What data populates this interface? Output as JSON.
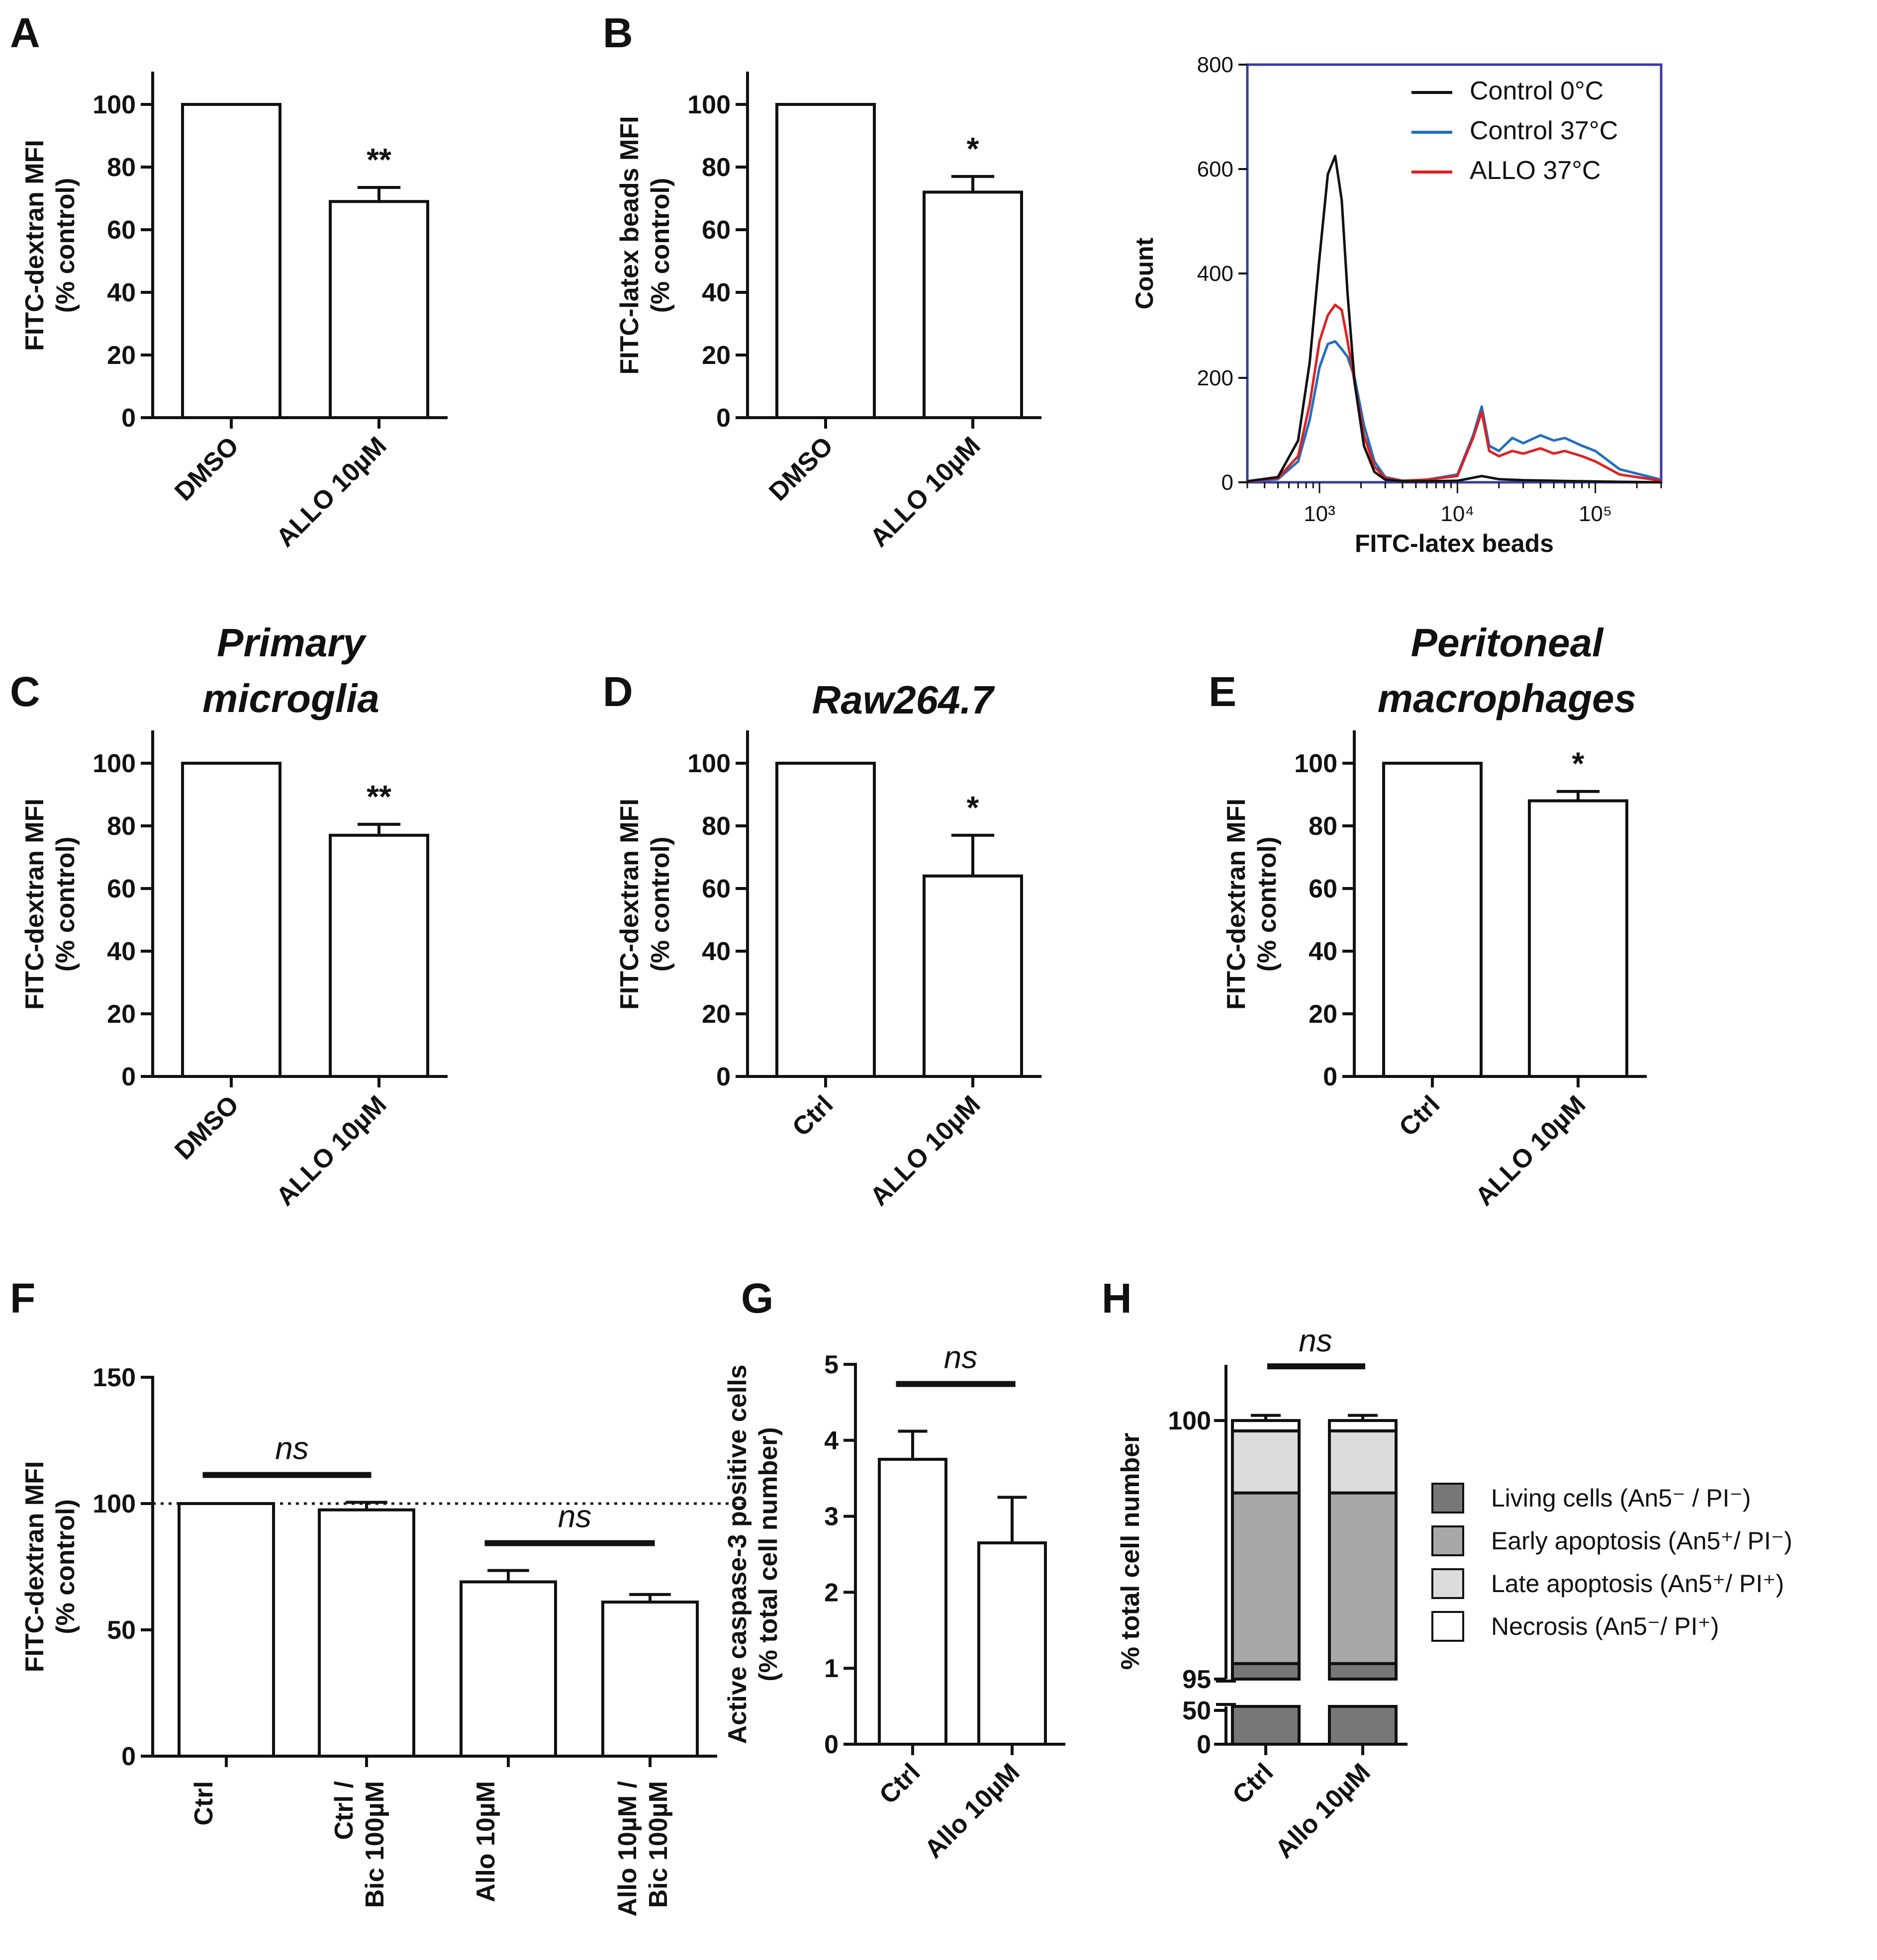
{
  "chart_data": [
    {
      "panel": "A",
      "type": "bar",
      "ylabel": [
        "FITC-dextran MFI",
        "(% control)"
      ],
      "categories": [
        "DMSO",
        "ALLO 10µM"
      ],
      "values": [
        100,
        69
      ],
      "errors": [
        0,
        4.5
      ],
      "significance": [
        "",
        "**"
      ],
      "ylim": [
        0,
        110
      ],
      "yticks": [
        0,
        20,
        40,
        60,
        80,
        100
      ]
    },
    {
      "panel": "B",
      "type": "bar",
      "ylabel": [
        "FITC-latex beads MFI",
        "(% control)"
      ],
      "categories": [
        "DMSO",
        "ALLO 10µM"
      ],
      "values": [
        100,
        72
      ],
      "errors": [
        0,
        5
      ],
      "significance": [
        "",
        "*"
      ],
      "ylim": [
        0,
        110
      ],
      "yticks": [
        0,
        20,
        40,
        60,
        80,
        100
      ]
    },
    {
      "panel": "B-histogram",
      "type": "line",
      "xlabel": "FITC-latex beads",
      "ylabel": "Count",
      "ylim": [
        0,
        800
      ],
      "yticks": [
        0,
        200,
        400,
        600,
        800
      ],
      "xscale": "log",
      "xlim": [
        300,
        300000
      ],
      "xtick_labels": [
        "10³",
        "10⁴",
        "10⁵"
      ],
      "legend": "top-right",
      "series": [
        {
          "name": "Control 0°C",
          "color": "#111111",
          "x": [
            300,
            500,
            700,
            850,
            1000,
            1150,
            1300,
            1450,
            1600,
            1800,
            2100,
            2500,
            3000,
            4000,
            6000,
            10000,
            15000,
            20000,
            30000,
            50000,
            80000,
            150000,
            300000
          ],
          "y": [
            2,
            10,
            80,
            230,
            430,
            590,
            625,
            540,
            360,
            190,
            70,
            20,
            5,
            2,
            2,
            3,
            12,
            6,
            4,
            3,
            2,
            1,
            0
          ]
        },
        {
          "name": "Control 37°C",
          "color": "#1f6fc0",
          "x": [
            300,
            500,
            700,
            850,
            1000,
            1150,
            1300,
            1450,
            1600,
            1800,
            2100,
            2500,
            3000,
            4000,
            6000,
            10000,
            13000,
            15000,
            17000,
            20000,
            25000,
            30000,
            40000,
            50000,
            60000,
            80000,
            100000,
            150000,
            300000
          ],
          "y": [
            2,
            6,
            40,
            120,
            220,
            265,
            270,
            255,
            240,
            200,
            110,
            40,
            10,
            3,
            5,
            15,
            90,
            145,
            70,
            60,
            85,
            75,
            90,
            80,
            85,
            70,
            60,
            25,
            5
          ]
        },
        {
          "name": "ALLO 37°C",
          "color": "#e02020",
          "x": [
            300,
            500,
            700,
            850,
            1000,
            1150,
            1300,
            1450,
            1600,
            1800,
            2100,
            2500,
            3000,
            4000,
            6000,
            10000,
            13000,
            15000,
            17000,
            20000,
            25000,
            30000,
            40000,
            50000,
            60000,
            80000,
            100000,
            150000,
            300000
          ],
          "y": [
            2,
            8,
            50,
            150,
            270,
            320,
            340,
            330,
            270,
            190,
            90,
            30,
            8,
            3,
            5,
            12,
            85,
            135,
            60,
            50,
            60,
            55,
            65,
            55,
            60,
            50,
            40,
            15,
            3
          ]
        }
      ]
    },
    {
      "panel": "C",
      "type": "bar",
      "title": [
        "Primary",
        "microglia"
      ],
      "ylabel": [
        "FITC-dextran MFI",
        "(% control)"
      ],
      "categories": [
        "DMSO",
        "ALLO 10µM"
      ],
      "values": [
        100,
        77
      ],
      "errors": [
        0,
        3.5
      ],
      "significance": [
        "",
        "**"
      ],
      "ylim": [
        0,
        110
      ],
      "yticks": [
        0,
        20,
        40,
        60,
        80,
        100
      ]
    },
    {
      "panel": "D",
      "type": "bar",
      "title": [
        "Raw264.7"
      ],
      "ylabel": [
        "FITC-dextran MFI",
        "(% control)"
      ],
      "categories": [
        "Ctrl",
        "ALLO 10µM"
      ],
      "values": [
        100,
        64
      ],
      "errors": [
        0,
        13
      ],
      "significance": [
        "",
        "*"
      ],
      "ylim": [
        0,
        110
      ],
      "yticks": [
        0,
        20,
        40,
        60,
        80,
        100
      ]
    },
    {
      "panel": "E",
      "type": "bar",
      "title": [
        "Peritoneal",
        "macrophages"
      ],
      "ylabel": [
        "FITC-dextran MFI",
        "(% control)"
      ],
      "categories": [
        "Ctrl",
        "ALLO 10µM"
      ],
      "values": [
        100,
        88
      ],
      "errors": [
        0,
        3
      ],
      "significance": [
        "",
        "*"
      ],
      "ylim": [
        0,
        110
      ],
      "yticks": [
        0,
        20,
        40,
        60,
        80,
        100
      ]
    },
    {
      "panel": "F",
      "type": "bar",
      "ylabel": [
        "FITC-dextran MFI",
        "(% control)"
      ],
      "categories": [
        [
          "Ctrl"
        ],
        [
          "Ctrl /",
          "Bic 100µM"
        ],
        [
          "Allo 10µM"
        ],
        [
          "Allo 10µM /",
          "Bic 100µM"
        ]
      ],
      "values": [
        100,
        97.5,
        69,
        61
      ],
      "errors": [
        0,
        3,
        4.5,
        3
      ],
      "reference_line": 100,
      "comparisons": [
        {
          "between": [
            0,
            1
          ],
          "label": "ns"
        },
        {
          "between": [
            2,
            3
          ],
          "label": "ns"
        }
      ],
      "ylim": [
        0,
        150
      ],
      "yticks": [
        0,
        50,
        100,
        150
      ]
    },
    {
      "panel": "G",
      "type": "bar",
      "ylabel": [
        "Active caspase-3 positive cells",
        "(% total cell number)"
      ],
      "categories": [
        "Ctrl",
        "Allo 10µM"
      ],
      "values": [
        3.75,
        2.65
      ],
      "errors": [
        0.37,
        0.6
      ],
      "comparisons": [
        {
          "between": [
            0,
            1
          ],
          "label": "ns"
        }
      ],
      "ylim": [
        0,
        5
      ],
      "yticks": [
        0,
        1,
        2,
        3,
        4,
        5
      ]
    },
    {
      "panel": "H",
      "type": "bar",
      "stacked": true,
      "ylabel": "% total cell number",
      "categories": [
        "Ctrl",
        "Allo 10µM"
      ],
      "ytick_labels": [
        "0",
        "50",
        "95",
        "100"
      ],
      "axis_break": true,
      "series": [
        {
          "name": "Living cells (An5⁻ / PI⁻)",
          "color": "#777777",
          "values": [
            95.3,
            95.3
          ],
          "errors": [
            0.4,
            0.7
          ]
        },
        {
          "name": "Early apoptosis (An5⁺/ PI⁻)",
          "color": "#a8a8a8",
          "values": [
            3.3,
            3.3
          ],
          "errors": [
            0.4,
            0.7
          ]
        },
        {
          "name": "Late apoptosis (An5⁺/ PI⁺)",
          "color": "#dcdcdc",
          "values": [
            1.2,
            1.2
          ],
          "errors": [
            0.2,
            0.2
          ]
        },
        {
          "name": "Necrosis (An5⁻/ PI⁺)",
          "color": "#ffffff",
          "values": [
            0.2,
            0.2
          ],
          "errors": [
            0.1,
            0.1
          ]
        }
      ],
      "comparisons": [
        {
          "between": [
            0,
            1
          ],
          "label": "ns"
        }
      ]
    }
  ]
}
